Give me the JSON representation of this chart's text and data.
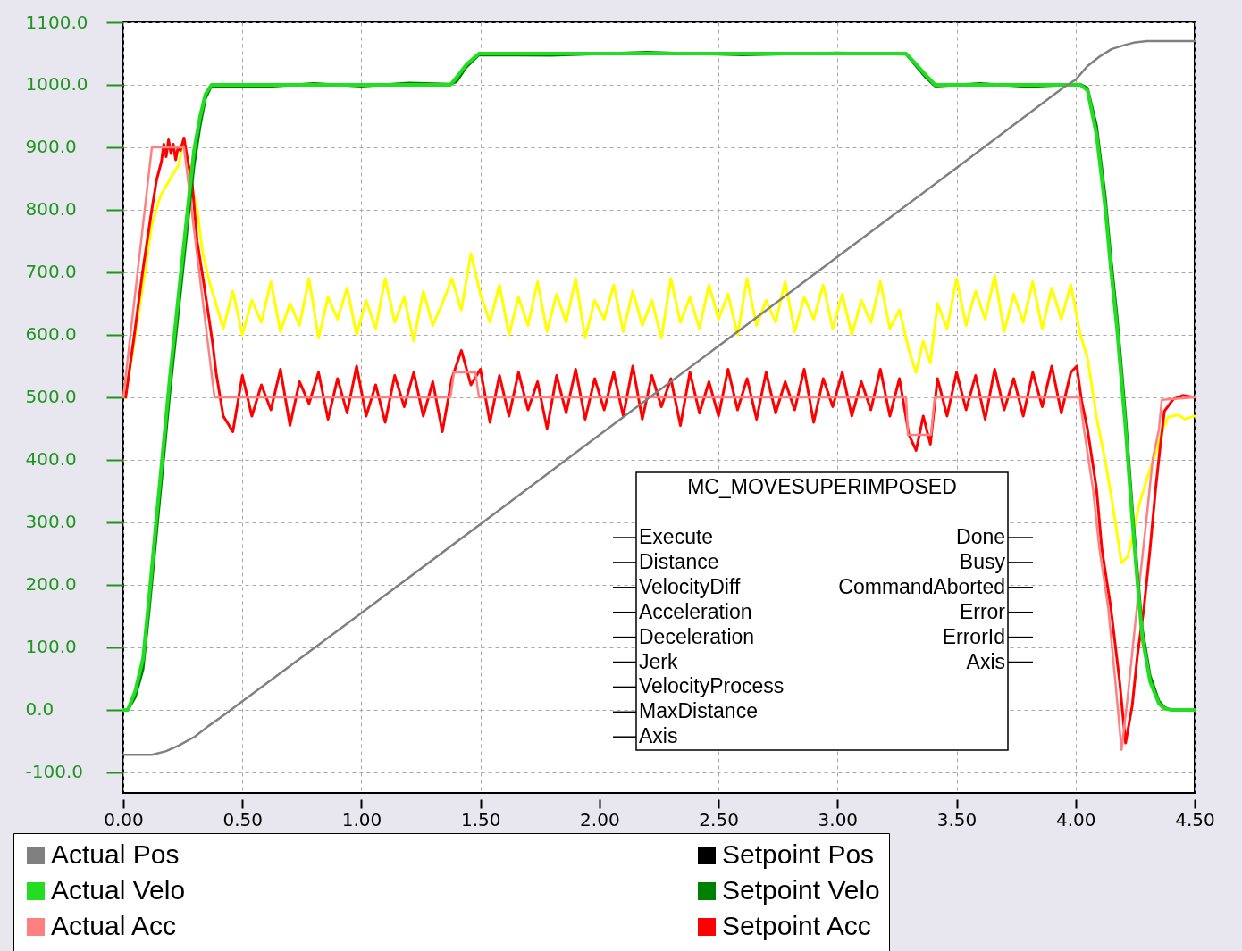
{
  "chart_data": {
    "type": "line",
    "xlim": [
      0,
      4.5
    ],
    "ylim": [
      -133,
      1100
    ],
    "xticks": [
      {
        "value": 0,
        "label": "0.00"
      },
      {
        "value": 0.5,
        "label": "0.50"
      },
      {
        "value": 1,
        "label": "1.00"
      },
      {
        "value": 1.5,
        "label": "1.50"
      },
      {
        "value": 2,
        "label": "2.00"
      },
      {
        "value": 2.5,
        "label": "2.50"
      },
      {
        "value": 3,
        "label": "3.00"
      },
      {
        "value": 3.5,
        "label": "3.50"
      },
      {
        "value": 4,
        "label": "4.00"
      },
      {
        "value": 4.5,
        "label": "4.50"
      }
    ],
    "yticks": [
      {
        "value": -100,
        "label": "-100.0"
      },
      {
        "value": 0,
        "label": "0.0"
      },
      {
        "value": 100,
        "label": "100.0"
      },
      {
        "value": 200,
        "label": "200.0"
      },
      {
        "value": 300,
        "label": "300.0"
      },
      {
        "value": 400,
        "label": "400.0"
      },
      {
        "value": 500,
        "label": "500.0"
      },
      {
        "value": 600,
        "label": "600.0"
      },
      {
        "value": 700,
        "label": "700.0"
      },
      {
        "value": 800,
        "label": "800.0"
      },
      {
        "value": 900,
        "label": "900.0"
      },
      {
        "value": 1000,
        "label": "1000.0"
      },
      {
        "value": 1100,
        "label": "1100.0"
      }
    ],
    "grid": true,
    "legend": "bottom",
    "annotations": [
      "MC_MOVESUPERIMPOSED",
      "Execute",
      "Distance",
      "VelocityDiff",
      "Acceleration",
      "Deceleration",
      "Jerk",
      "VelocityProcess",
      "MaxDistance",
      "Axis",
      "Done",
      "Busy",
      "CommandAborted",
      "Error",
      "ErrorId",
      "Axis"
    ],
    "series": [
      {
        "name": "Actual Pos",
        "color": "#808080",
        "x": [
          0,
          0.12,
          0.18,
          0.233,
          0.3,
          0.357,
          0.42,
          0.484,
          1.0,
          1.5,
          2.0,
          2.5,
          3.0,
          3.5,
          3.95,
          4.0,
          4.05,
          4.1,
          4.15,
          4.2,
          4.25,
          4.3,
          4.5
        ],
        "values": [
          -72,
          -72,
          -66,
          -57,
          -43,
          -26,
          -9,
          9,
          155,
          297,
          440,
          582,
          725,
          867,
          996,
          1008,
          1030,
          1045,
          1057,
          1063,
          1068,
          1070,
          1070
        ]
      },
      {
        "name": "Setpoint Pos",
        "color": "#000000"
      },
      {
        "name": "Actual Velo",
        "color": "#22dd22",
        "x": [
          0,
          0.019,
          0.05,
          0.083,
          0.109,
          0.139,
          0.169,
          0.195,
          0.22,
          0.245,
          0.27,
          0.297,
          0.323,
          0.345,
          0.37,
          0.6,
          0.8,
          1.0,
          1.2,
          1.374,
          1.4,
          1.44,
          1.494,
          1.8,
          2.2,
          2.6,
          3.0,
          3.288,
          3.33,
          3.37,
          3.41,
          3.6,
          3.8,
          4.02,
          4.05,
          4.088,
          4.125,
          4.148,
          4.174,
          4.2,
          4.21,
          4.238,
          4.26,
          4.28,
          4.313,
          4.35,
          4.373,
          4.4,
          4.5
        ],
        "values": [
          0,
          0,
          30,
          82,
          182,
          306,
          425,
          530,
          620,
          710,
          800,
          895,
          950,
          985,
          1000,
          1000,
          1000,
          1000,
          1000,
          1000,
          1012,
          1032,
          1050,
          1050,
          1050,
          1050,
          1050,
          1050,
          1033,
          1016,
          1000,
          1000,
          1000,
          1000,
          991,
          920,
          801,
          706,
          610,
          494,
          449,
          306,
          202,
          116,
          45,
          10,
          2,
          0,
          0
        ]
      },
      {
        "name": "Setpoint Velo",
        "color": "#008000",
        "x": [
          0,
          0.019,
          0.05,
          0.083,
          0.109,
          0.139,
          0.169,
          0.195,
          0.22,
          0.245,
          0.27,
          0.297,
          0.323,
          0.345,
          0.37,
          0.6,
          0.8,
          1.0,
          1.2,
          1.374,
          1.4,
          1.44,
          1.494,
          1.8,
          2.2,
          2.6,
          3.0,
          3.288,
          3.33,
          3.37,
          3.41,
          3.6,
          3.8,
          4.02,
          4.05,
          4.088,
          4.125,
          4.148,
          4.174,
          4.2,
          4.21,
          4.238,
          4.26,
          4.28,
          4.313,
          4.35,
          4.373,
          4.4,
          4.5
        ],
        "values": [
          0,
          0,
          20,
          65,
          160,
          280,
          400,
          505,
          595,
          685,
          775,
          870,
          935,
          978,
          998,
          997,
          1002,
          998,
          1003,
          1001,
          1005,
          1028,
          1048,
          1047,
          1052,
          1048,
          1051,
          1049,
          1030,
          1012,
          998,
          1002,
          997,
          1001,
          995,
          935,
          820,
          725,
          630,
          515,
          470,
          325,
          220,
          130,
          55,
          14,
          4,
          0,
          0
        ]
      },
      {
        "name": "Actual Acc",
        "color": "#ff8080",
        "x": [
          0,
          0.12,
          0.255,
          0.383,
          1.374,
          1.389,
          1.479,
          1.494,
          3.288,
          3.296,
          3.393,
          3.408,
          4.017,
          4.035,
          4.073,
          4.1,
          4.137,
          4.167,
          4.193,
          4.219,
          4.242,
          4.268,
          4.298,
          4.324,
          4.35,
          4.362,
          4.5
        ],
        "values": [
          500,
          900,
          900,
          500,
          500,
          540,
          540,
          500,
          500,
          440,
          440,
          500,
          500,
          449,
          353,
          258,
          163,
          45,
          -64,
          21,
          107,
          202,
          306,
          401,
          449,
          496,
          500
        ]
      },
      {
        "name": "Setpoint Acc",
        "color": "#ff0000",
        "x": [
          0.01,
          0.045,
          0.083,
          0.12,
          0.14,
          0.16,
          0.17,
          0.18,
          0.19,
          0.2,
          0.21,
          0.22,
          0.23,
          0.24,
          0.255,
          0.27,
          0.29,
          0.31,
          0.335,
          0.357,
          0.375,
          0.39,
          0.42,
          0.46,
          0.5,
          0.54,
          0.58,
          0.62,
          0.66,
          0.7,
          0.74,
          0.78,
          0.82,
          0.86,
          0.9,
          0.94,
          0.98,
          1.02,
          1.06,
          1.1,
          1.14,
          1.18,
          1.22,
          1.26,
          1.3,
          1.34,
          1.38,
          1.42,
          1.46,
          1.5,
          1.54,
          1.58,
          1.62,
          1.66,
          1.7,
          1.74,
          1.78,
          1.82,
          1.86,
          1.9,
          1.94,
          1.98,
          2.02,
          2.06,
          2.1,
          2.14,
          2.18,
          2.22,
          2.26,
          2.3,
          2.34,
          2.38,
          2.42,
          2.46,
          2.5,
          2.54,
          2.58,
          2.62,
          2.66,
          2.7,
          2.74,
          2.78,
          2.82,
          2.86,
          2.9,
          2.94,
          2.98,
          3.02,
          3.06,
          3.1,
          3.14,
          3.18,
          3.22,
          3.26,
          3.3,
          3.33,
          3.36,
          3.39,
          3.42,
          3.46,
          3.5,
          3.54,
          3.58,
          3.62,
          3.66,
          3.7,
          3.74,
          3.78,
          3.82,
          3.86,
          3.9,
          3.94,
          3.98,
          4.005,
          4.025,
          4.05,
          4.088,
          4.11,
          4.148,
          4.185,
          4.21,
          4.238,
          4.26,
          4.287,
          4.313,
          4.336,
          4.355,
          4.373,
          4.41,
          4.45,
          4.5
        ],
        "values": [
          500,
          596,
          706,
          801,
          848,
          877,
          905,
          885,
          912,
          890,
          905,
          880,
          900,
          895,
          915,
          880,
          840,
          750,
          690,
          634,
          587,
          539,
          470,
          445,
          535,
          470,
          520,
          480,
          545,
          455,
          525,
          490,
          540,
          465,
          530,
          475,
          550,
          470,
          520,
          460,
          535,
          485,
          540,
          470,
          525,
          445,
          530,
          575,
          520,
          545,
          460,
          535,
          470,
          540,
          480,
          525,
          450,
          535,
          475,
          545,
          465,
          530,
          480,
          540,
          470,
          550,
          465,
          535,
          485,
          530,
          455,
          540,
          475,
          525,
          470,
          545,
          480,
          530,
          465,
          540,
          475,
          525,
          480,
          545,
          460,
          530,
          485,
          540,
          470,
          525,
          480,
          545,
          470,
          530,
          440,
          415,
          470,
          425,
          530,
          470,
          540,
          480,
          535,
          465,
          545,
          480,
          530,
          470,
          540,
          485,
          550,
          475,
          540,
          550,
          495,
          449,
          353,
          258,
          163,
          45,
          -53,
          7,
          88,
          163,
          258,
          353,
          420,
          478,
          497,
          503,
          500
        ]
      },
      {
        "color": "#ffff00",
        "x": [
          0.008,
          0.045,
          0.083,
          0.12,
          0.158,
          0.195,
          0.233,
          0.25,
          0.265,
          0.28,
          0.31,
          0.334,
          0.364,
          0.383,
          0.42,
          0.46,
          0.5,
          0.54,
          0.58,
          0.62,
          0.66,
          0.7,
          0.74,
          0.78,
          0.82,
          0.86,
          0.9,
          0.94,
          0.98,
          1.02,
          1.06,
          1.1,
          1.14,
          1.18,
          1.22,
          1.26,
          1.3,
          1.34,
          1.38,
          1.42,
          1.46,
          1.5,
          1.54,
          1.58,
          1.62,
          1.66,
          1.7,
          1.74,
          1.78,
          1.82,
          1.86,
          1.9,
          1.94,
          1.98,
          2.02,
          2.06,
          2.1,
          2.14,
          2.18,
          2.22,
          2.26,
          2.3,
          2.34,
          2.38,
          2.42,
          2.46,
          2.5,
          2.54,
          2.58,
          2.62,
          2.66,
          2.7,
          2.74,
          2.78,
          2.82,
          2.86,
          2.9,
          2.94,
          2.98,
          3.02,
          3.06,
          3.1,
          3.14,
          3.18,
          3.22,
          3.26,
          3.3,
          3.33,
          3.36,
          3.39,
          3.42,
          3.46,
          3.5,
          3.54,
          3.58,
          3.62,
          3.66,
          3.7,
          3.74,
          3.78,
          3.82,
          3.86,
          3.9,
          3.94,
          3.98,
          4.02,
          4.05,
          4.088,
          4.125,
          4.155,
          4.174,
          4.193,
          4.219,
          4.242,
          4.268,
          4.306,
          4.336,
          4.362,
          4.388,
          4.43,
          4.46,
          4.5
        ],
        "values": [
          500,
          587,
          681,
          777,
          824,
          848,
          872,
          910,
          880,
          848,
          801,
          729,
          681,
          658,
          610,
          670,
          600,
          655,
          620,
          685,
          605,
          650,
          615,
          690,
          595,
          660,
          625,
          675,
          600,
          655,
          610,
          690,
          620,
          660,
          590,
          670,
          615,
          650,
          690,
          640,
          730,
          665,
          620,
          680,
          600,
          660,
          615,
          685,
          605,
          665,
          620,
          690,
          595,
          655,
          625,
          680,
          605,
          670,
          615,
          655,
          595,
          690,
          620,
          660,
          610,
          680,
          625,
          665,
          600,
          690,
          615,
          655,
          620,
          685,
          605,
          660,
          625,
          680,
          610,
          665,
          600,
          655,
          620,
          685,
          610,
          640,
          575,
          540,
          590,
          555,
          650,
          610,
          690,
          615,
          670,
          625,
          695,
          605,
          665,
          620,
          685,
          610,
          675,
          625,
          680,
          600,
          563,
          468,
          397,
          330,
          282,
          235,
          245,
          282,
          330,
          377,
          410,
          444,
          468,
          472,
          465,
          470
        ]
      }
    ]
  }
}
